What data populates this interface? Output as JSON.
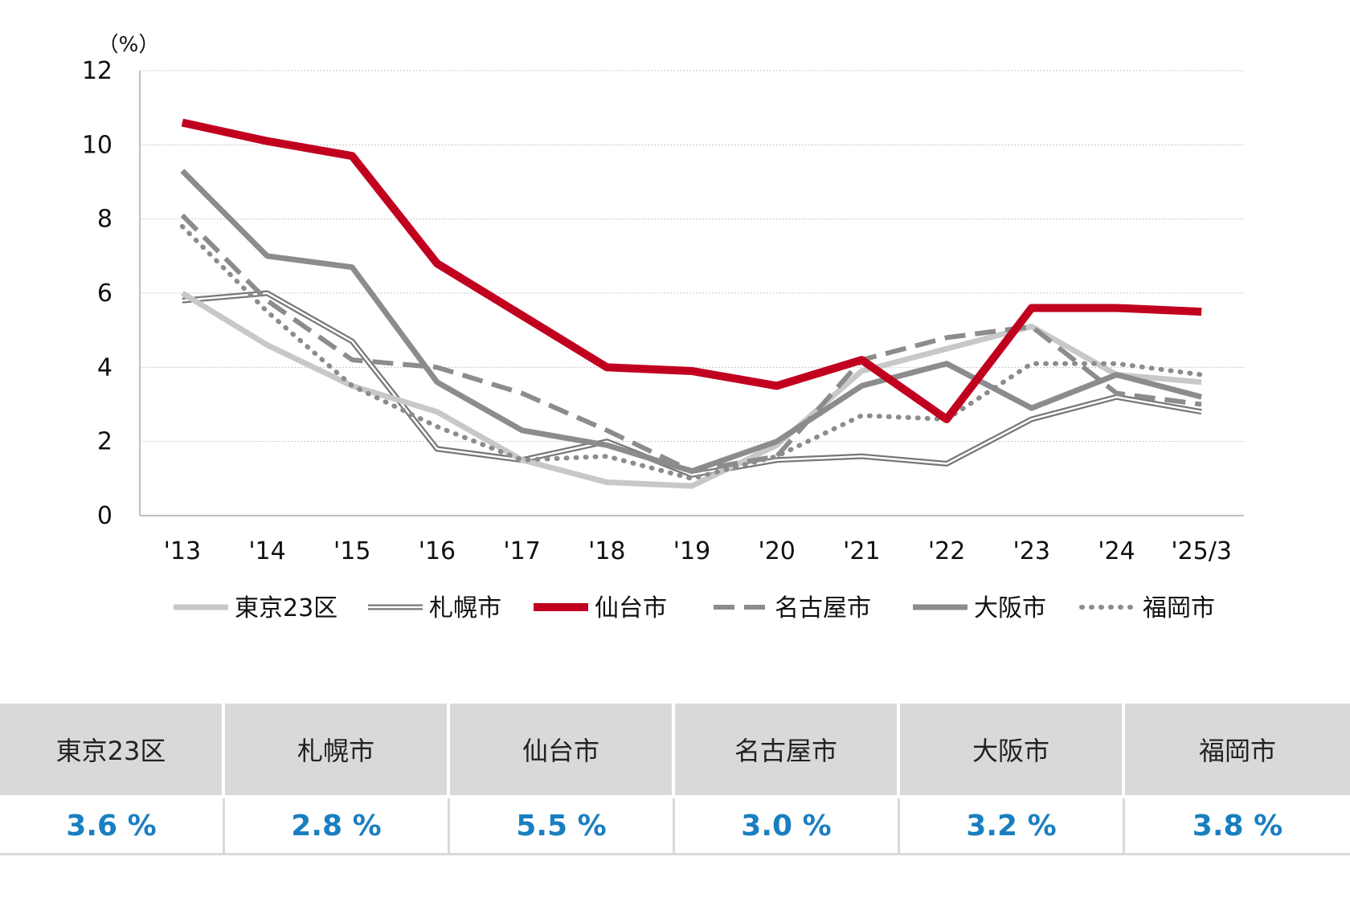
{
  "chart_data": {
    "type": "line",
    "y_unit": "（%）",
    "x": [
      "'13",
      "'14",
      "'15",
      "'16",
      "'17",
      "'18",
      "'19",
      "'20",
      "'21",
      "'22",
      "'23",
      "'24",
      "'25/3"
    ],
    "ylim": [
      0,
      12
    ],
    "yticks": [
      0,
      2,
      4,
      6,
      8,
      10,
      12
    ],
    "grid": true,
    "legend_position": "bottom",
    "series": [
      {
        "name": "東京23区",
        "color": "#c8c8c8",
        "style": "solid-thick",
        "values": [
          6.0,
          4.6,
          3.5,
          2.8,
          1.5,
          0.9,
          0.8,
          1.9,
          3.9,
          4.5,
          5.1,
          3.8,
          3.6
        ]
      },
      {
        "name": "札幌市",
        "color": "#777777",
        "style": "double-line",
        "values": [
          5.8,
          6.0,
          4.7,
          1.8,
          1.5,
          2.0,
          1.1,
          1.5,
          1.6,
          1.4,
          2.6,
          3.2,
          2.8
        ]
      },
      {
        "name": "仙台市",
        "color": "#c0001e",
        "style": "solid-bold",
        "values": [
          10.6,
          10.1,
          9.7,
          6.8,
          5.4,
          4.0,
          3.9,
          3.5,
          4.2,
          2.6,
          5.6,
          5.6,
          5.5
        ]
      },
      {
        "name": "名古屋市",
        "color": "#8c8c8c",
        "style": "dashed",
        "values": [
          8.1,
          5.8,
          4.2,
          4.0,
          3.3,
          2.3,
          1.2,
          1.6,
          4.2,
          4.8,
          5.1,
          3.3,
          3.0
        ]
      },
      {
        "name": "大阪市",
        "color": "#8c8c8c",
        "style": "solid",
        "values": [
          9.3,
          7.0,
          6.7,
          3.6,
          2.3,
          1.9,
          1.2,
          2.0,
          3.5,
          4.1,
          2.9,
          3.8,
          3.2
        ]
      },
      {
        "name": "福岡市",
        "color": "#8c8c8c",
        "style": "dotted",
        "values": [
          7.8,
          5.5,
          3.5,
          2.4,
          1.5,
          1.6,
          1.0,
          1.6,
          2.7,
          2.6,
          4.1,
          4.1,
          3.8
        ]
      }
    ]
  },
  "summary": {
    "headers": [
      "東京23区",
      "札幌市",
      "仙台市",
      "名古屋市",
      "大阪市",
      "福岡市"
    ],
    "values": [
      "3.6 %",
      "2.8 %",
      "5.5 %",
      "3.0 %",
      "3.2 %",
      "3.8 %"
    ]
  }
}
